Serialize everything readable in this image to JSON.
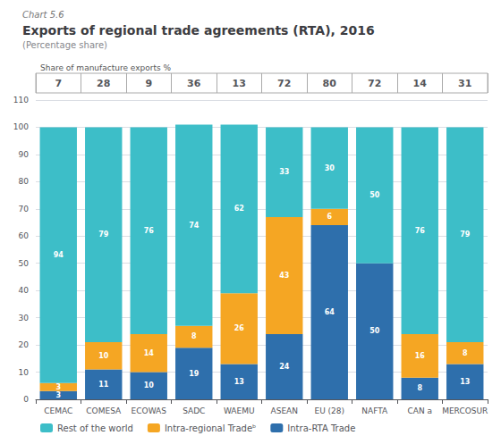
{
  "chart_data": {
    "type": "bar",
    "chart_label": "Chart 5.6",
    "title": "Exports of regional trade agreements (RTA), 2016",
    "subtitle": "(Percentage share)",
    "share_label": "Share of manufacture exports %",
    "categories": [
      "CEMAC",
      "COMESA",
      "ECOWAS",
      "SADC",
      "WAEMU",
      "ASEAN",
      "EU (28)",
      "NAFTA",
      "CAN a",
      "MERCOSUR"
    ],
    "manufacture_shares": [
      7,
      28,
      9,
      36,
      13,
      72,
      80,
      72,
      14,
      31
    ],
    "series": [
      {
        "name": "Intra-RTA Trade",
        "color": "#2e6fac",
        "values": [
          3,
          11,
          10,
          19,
          13,
          24,
          64,
          50,
          8,
          13
        ]
      },
      {
        "name": "Intra-regional Tradeᵇ",
        "color": "#f5a623",
        "values": [
          3,
          10,
          14,
          8,
          26,
          43,
          6,
          0,
          16,
          8
        ]
      },
      {
        "name": "Rest of the world",
        "color": "#3dbec8",
        "values": [
          94,
          79,
          76,
          74,
          62,
          33,
          30,
          50,
          76,
          79
        ]
      }
    ],
    "ylim": [
      0,
      110
    ],
    "yticks": [
      0,
      10,
      20,
      30,
      40,
      50,
      60,
      70,
      80,
      90,
      100,
      110
    ],
    "grid": true,
    "stacked": true,
    "data_labels": true,
    "legend": "lower left"
  }
}
